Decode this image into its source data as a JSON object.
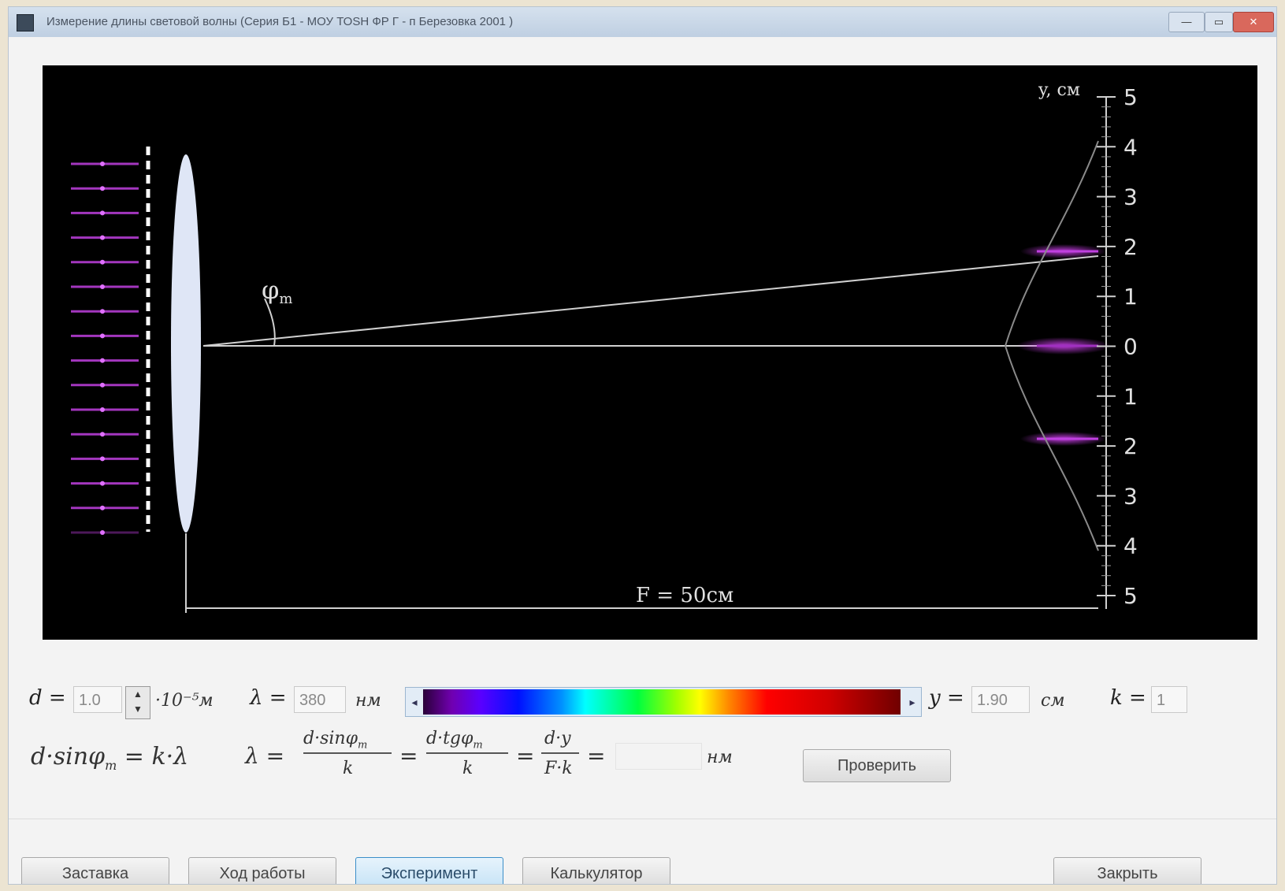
{
  "window": {
    "title": "Измерение длины световой волны (Серия Б1 - МОУ ТОSH ФР Г - п Березовка 2001 )",
    "buttons": {
      "minimize": "—",
      "maximize": "▭",
      "close": "✕"
    }
  },
  "scene": {
    "phi_label": "φ",
    "phi_sub": "m",
    "focal_label": "F = 50см",
    "axis_label": "y, см",
    "axis_ticks": [
      "5",
      "4",
      "3",
      "2",
      "1",
      "0",
      "1",
      "2",
      "3",
      "4",
      "5"
    ],
    "colors": {
      "background": "#000000",
      "light": "#c040e0",
      "lens": "#dfe6f6",
      "lines": "#cccccc"
    }
  },
  "controls": {
    "d_label": "d =",
    "d_value": "1.0",
    "d_unit": "·10⁻⁵м",
    "lambda_label": "λ =",
    "lambda_value": "380",
    "lambda_unit": "нм",
    "y_label": "y =",
    "y_value": "1.90",
    "y_unit": "см",
    "k_label": "k =",
    "k_value": "1",
    "spin_up": "▲",
    "spin_down": "▼",
    "slider_left": "◂",
    "slider_right": "▸"
  },
  "formula": {
    "main": "d·sinφ",
    "main_sub": "m",
    "main_rhs": " = k·λ",
    "lambda_eq": "λ =",
    "num1": "d·sinφ",
    "num1_sub": "m",
    "den1": "k",
    "eq": "=",
    "num2": "d·tgφ",
    "num2_sub": "m",
    "den2": "k",
    "num3": "d·y",
    "den3": "F·k",
    "result_value": "",
    "unit": "нм",
    "check_button": "Проверить"
  },
  "nav": {
    "buttons": [
      "Заставка",
      "Ход работы",
      "Эксперимент",
      "Калькулятор"
    ],
    "active_index": 2,
    "close_button": "Закрыть"
  }
}
